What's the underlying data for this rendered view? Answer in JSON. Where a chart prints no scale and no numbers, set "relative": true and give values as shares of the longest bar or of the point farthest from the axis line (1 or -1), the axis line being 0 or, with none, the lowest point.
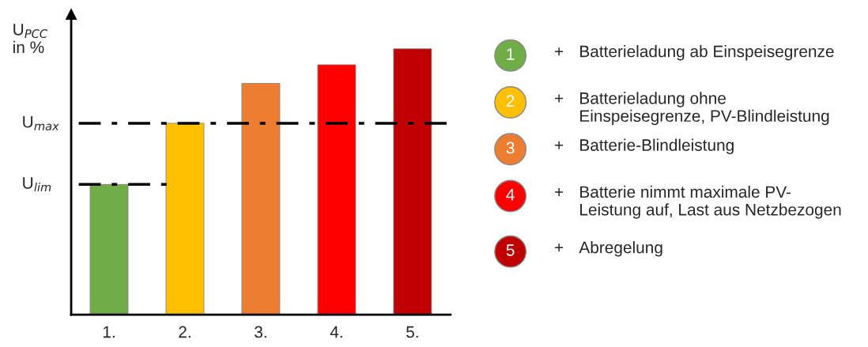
{
  "chart_data": {
    "type": "bar",
    "relative": true,
    "ylabel": "U$_{PCC}$\nin %",
    "categories": [
      "1.",
      "2.",
      "3.",
      "4.",
      "5."
    ],
    "series": [
      {
        "name": "+ Batterieladung ab Einspeisegrenze",
        "color": "#70ad47",
        "values": [
          0.49,
          null,
          null,
          null,
          null
        ]
      },
      {
        "name": "+ Batterieladung ohne\nEinspeisegrenze, PV-Blindleistung",
        "color": "#ffc000",
        "values": [
          null,
          0.72,
          null,
          null,
          null
        ]
      },
      {
        "name": "+ Batterie-Blindleistung",
        "color": "#ed7d31",
        "values": [
          null,
          null,
          0.87,
          null,
          null
        ]
      },
      {
        "name": "+ Batterie nimmt maximale PV-\nLeistung auf, Last aus Netzbezogen",
        "color": "#ff0000",
        "values": [
          null,
          null,
          null,
          0.94,
          null
        ]
      },
      {
        "name": "+ Abregelung",
        "color": "#c00000",
        "values": [
          null,
          null,
          null,
          null,
          1.0
        ]
      }
    ],
    "annotations": [
      "1",
      "2",
      "3",
      "4",
      "5"
    ],
    "ref_lines": [
      {
        "axis": "y",
        "value": 0.72,
        "label": "U$_{max}$",
        "color": "#000000",
        "line_style": "dashdot"
      },
      {
        "axis": "y",
        "value": 0.49,
        "label": "U$_{lim}$",
        "color": "#000000",
        "line_style": "dashdot"
      }
    ],
    "legend": "right",
    "grid": false
  }
}
